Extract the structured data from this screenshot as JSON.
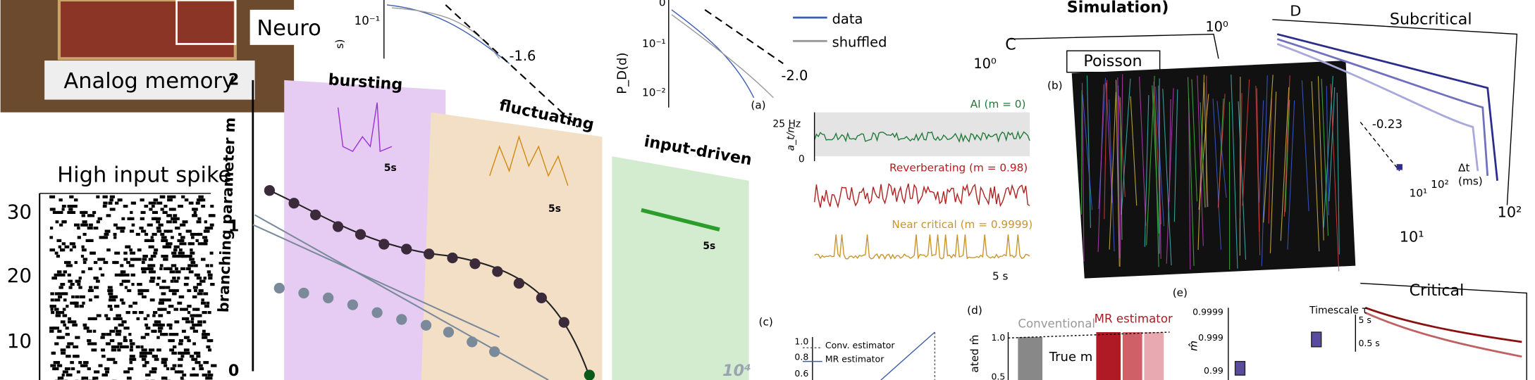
{
  "chip": {
    "label_top": "Neuro",
    "label_memory": "Analog memory"
  },
  "raster": {
    "title": "High input spike",
    "yticks": [
      "30",
      "20",
      "10"
    ]
  },
  "decay_plot": {
    "tick": "10⁻¹",
    "slope": "-1.6",
    "axis_fragment": "s)"
  },
  "branching": {
    "ylabel": "branching parameter m",
    "yticks": [
      "2",
      "1",
      "0"
    ],
    "regimes": [
      "bursting",
      "fluctuating",
      "input-driven"
    ],
    "scalebars": [
      "5s",
      "5s",
      "5s"
    ],
    "x_fragment": "10⁴"
  },
  "pd_plot": {
    "ticks": [
      "0",
      "10⁻¹",
      "10⁻²"
    ],
    "ylabel": "P_D(d)",
    "slope": "-2.0",
    "panel": "(a)"
  },
  "activity": {
    "legend": [
      "data",
      "shuffled"
    ],
    "yticks": [
      "25 Hz",
      "0"
    ],
    "ylabel": "a_t/n",
    "traces": [
      "AI (m = 0)",
      "Reverberating (m = 0.98)",
      "Near critical (m = 0.9999)"
    ],
    "scalebar": "5 s"
  },
  "simulation": {
    "title": "Simulation)",
    "panel": "C",
    "tick": "10⁰",
    "label": "Poisson",
    "image_panel": "(b)"
  },
  "scaling": {
    "tick": "10⁰",
    "panel": "D",
    "label": "Subcritical",
    "slope": "-0.23",
    "inset_xlabel": "Δt",
    "inset_unit": "(ms)",
    "inset_ticks": [
      "10¹",
      "10²"
    ],
    "xticks": [
      "10¹",
      "10²"
    ],
    "label2": "Critical"
  },
  "estimator": {
    "panel": "(c)",
    "yticks": [
      "1.0",
      "0.8",
      "0.6"
    ],
    "legend": [
      "Conv. estimator",
      "MR estimator"
    ]
  },
  "bars": {
    "panel": "(d)",
    "groups": [
      "Conventional",
      "MR estimator"
    ],
    "yticks": [
      "1.0",
      "0.5"
    ],
    "true_label": "True m",
    "ylabel": "ated m̂"
  },
  "boxes": {
    "panel": "(e)",
    "yticks": [
      "0.9999",
      "0.999",
      "0.99"
    ],
    "ylabel": "m̂",
    "timescale": "Timescale τ",
    "tticks": [
      "5 s",
      "0.5 s"
    ]
  }
}
